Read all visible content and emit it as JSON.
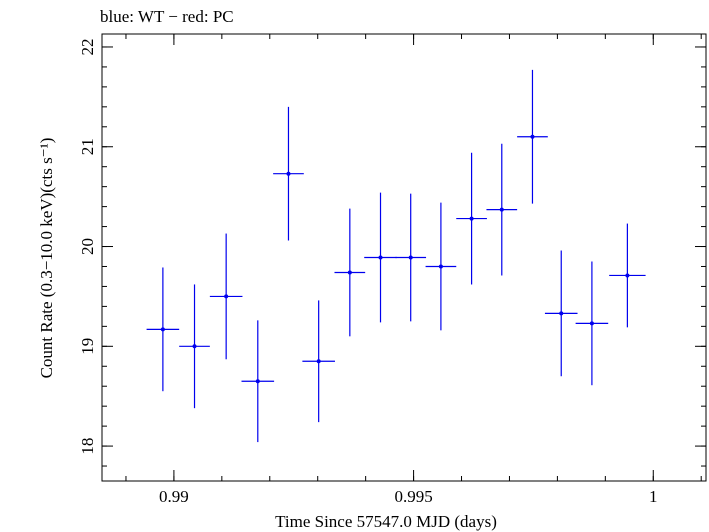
{
  "chart_data": {
    "type": "scatter",
    "title": "blue: WT − red: PC",
    "xlabel": "Time Since 57547.0 MJD (days)",
    "ylabel": "Count Rate (0.3−10.0 keV)(cts s⁻¹)",
    "xlim": [
      0.9885,
      1.0011
    ],
    "ylim": [
      17.65,
      22.13
    ],
    "x_ticks": [
      {
        "value": 0.99,
        "label": "0.99"
      },
      {
        "value": 0.995,
        "label": "0.995"
      },
      {
        "value": 1.0,
        "label": "1"
      }
    ],
    "y_ticks": [
      {
        "value": 18,
        "label": "18"
      },
      {
        "value": 19,
        "label": "19"
      },
      {
        "value": 20,
        "label": "20"
      },
      {
        "value": 21,
        "label": "21"
      },
      {
        "value": 22,
        "label": "22"
      }
    ],
    "series": [
      {
        "name": "WT",
        "color": "#0000ee",
        "points": [
          {
            "x": 0.98977,
            "xerr": 0.00034,
            "y": 19.17,
            "yerr": 0.62
          },
          {
            "x": 0.99043,
            "xerr": 0.00032,
            "y": 19.0,
            "yerr": 0.62
          },
          {
            "x": 0.99109,
            "xerr": 0.00034,
            "y": 19.5,
            "yerr": 0.63
          },
          {
            "x": 0.99175,
            "xerr": 0.00034,
            "y": 18.65,
            "yerr": 0.61
          },
          {
            "x": 0.99239,
            "xerr": 0.00032,
            "y": 20.73,
            "yerr": 0.67
          },
          {
            "x": 0.99302,
            "xerr": 0.00034,
            "y": 18.85,
            "yerr": 0.61
          },
          {
            "x": 0.99367,
            "xerr": 0.00032,
            "y": 19.74,
            "yerr": 0.64
          },
          {
            "x": 0.99431,
            "xerr": 0.00034,
            "y": 19.89,
            "yerr": 0.65
          },
          {
            "x": 0.99494,
            "xerr": 0.00032,
            "y": 19.89,
            "yerr": 0.64
          },
          {
            "x": 0.99557,
            "xerr": 0.00032,
            "y": 19.8,
            "yerr": 0.64
          },
          {
            "x": 0.99621,
            "xerr": 0.00032,
            "y": 20.28,
            "yerr": 0.66
          },
          {
            "x": 0.99684,
            "xerr": 0.00032,
            "y": 20.37,
            "yerr": 0.66
          },
          {
            "x": 0.99748,
            "xerr": 0.00032,
            "y": 21.1,
            "yerr": 0.67
          },
          {
            "x": 0.99808,
            "xerr": 0.00034,
            "y": 19.33,
            "yerr": 0.63
          },
          {
            "x": 0.99872,
            "xerr": 0.00034,
            "y": 19.23,
            "yerr": 0.62
          },
          {
            "x": 0.99946,
            "xerr": 0.00038,
            "y": 19.71,
            "yerr": 0.52
          }
        ]
      }
    ]
  }
}
